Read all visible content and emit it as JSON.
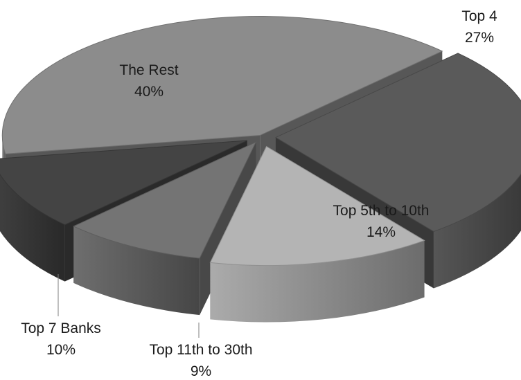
{
  "chart_data": {
    "type": "pie",
    "style": "3d-exploded",
    "title": "",
    "legend": "none",
    "slices": [
      {
        "label": "The Rest",
        "value": 40,
        "value_label": "40%",
        "color": "#8c8c8c"
      },
      {
        "label": "Top 4",
        "value": 27,
        "value_label": "27%",
        "color": "#5a5a5a"
      },
      {
        "label": "Top 5th to 10th",
        "value": 14,
        "value_label": "14%",
        "color": "#b4b4b4"
      },
      {
        "label": "Top 11th to 30th",
        "value": 9,
        "value_label": "9%",
        "color": "#747474"
      },
      {
        "label": "Top 7 Banks",
        "value": 10,
        "value_label": "10%",
        "color": "#444444"
      }
    ]
  }
}
